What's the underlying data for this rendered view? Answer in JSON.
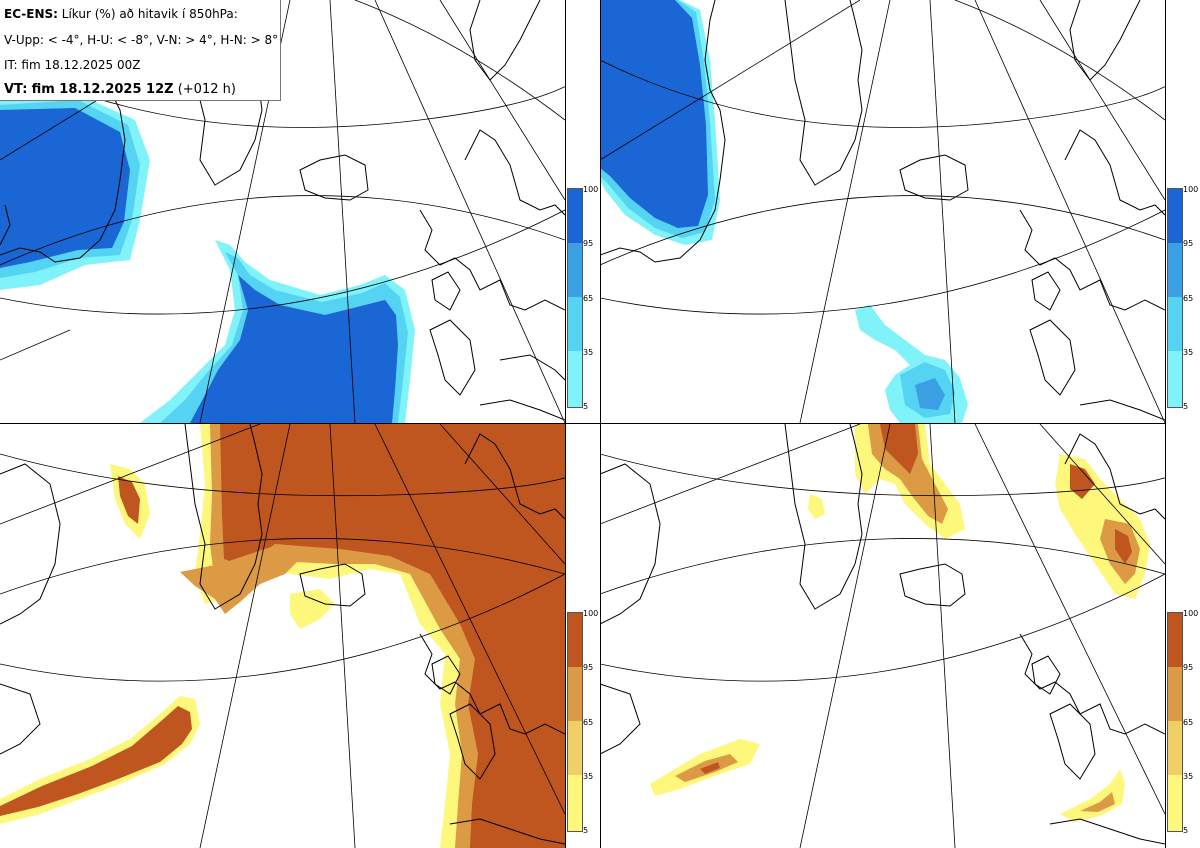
{
  "info": {
    "model": "EC-ENS:",
    "description": "Líkur (%) að hitavik í 850hPa:",
    "criteria": "V-Upp: < -4°, H-U: < -8°, V-N: > 4°, H-N: > 8°",
    "init_time": "IT: fim 18.12.2025 00Z",
    "valid_prefix": "VT:",
    "valid_time": "fim 18.12.2025 12Z",
    "lead_time": "(+012 h)"
  },
  "colorbar_ticks": [
    "100",
    "95",
    "65",
    "35",
    "5"
  ],
  "colors": {
    "cold": [
      "#7ff3f9",
      "#55d3f2",
      "#3b9fe4",
      "#2575dd",
      "#1a66d4"
    ],
    "warm": [
      "#fdf87c",
      "#f0cf67",
      "#dc9a45",
      "#c86a2c",
      "#c0561f"
    ],
    "coast": "#000000",
    "grid": "#000000"
  },
  "panels": [
    {
      "id": "cold-moderate",
      "scheme": "cold"
    },
    {
      "id": "cold-strong",
      "scheme": "cold"
    },
    {
      "id": "warm-moderate",
      "scheme": "warm"
    },
    {
      "id": "warm-strong",
      "scheme": "warm"
    }
  ]
}
